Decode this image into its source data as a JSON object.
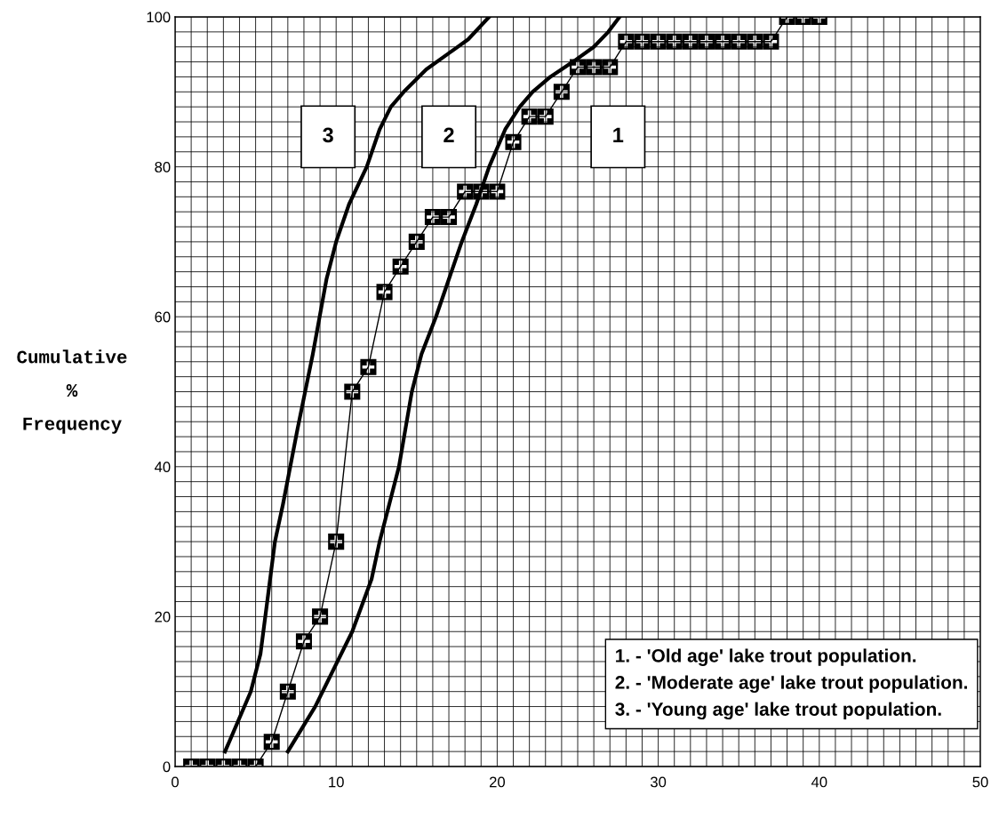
{
  "chart_data": {
    "type": "line",
    "ylabel": "Cumulative\n%\nFrequency",
    "xlim": [
      0,
      50
    ],
    "ylim": [
      0,
      100
    ],
    "xticks": [
      0,
      {
        "value": 1,
        "label": null
      },
      {
        "value": 2,
        "label": null
      },
      {
        "value": 3,
        "label": null
      },
      {
        "value": 4,
        "label": null
      },
      {
        "value": 5,
        "label": null
      },
      {
        "value": 6,
        "label": null
      },
      {
        "value": 7,
        "label": null
      },
      {
        "value": 8,
        "label": null
      },
      {
        "value": 9,
        "label": null
      },
      10,
      {
        "value": 11,
        "label": null
      },
      {
        "value": 12,
        "label": null
      },
      {
        "value": 13,
        "label": null
      },
      {
        "value": 14,
        "label": null
      },
      {
        "value": 15,
        "label": null
      },
      {
        "value": 16,
        "label": null
      },
      {
        "value": 17,
        "label": null
      },
      {
        "value": 18,
        "label": null
      },
      {
        "value": 19,
        "label": null
      },
      20,
      {
        "value": 21,
        "label": null
      },
      {
        "value": 22,
        "label": null
      },
      {
        "value": 23,
        "label": null
      },
      {
        "value": 24,
        "label": null
      },
      {
        "value": 25,
        "label": null
      },
      {
        "value": 26,
        "label": null
      },
      {
        "value": 27,
        "label": null
      },
      {
        "value": 28,
        "label": null
      },
      {
        "value": 29,
        "label": null
      },
      30,
      {
        "value": 31,
        "label": null
      },
      {
        "value": 32,
        "label": null
      },
      {
        "value": 33,
        "label": null
      },
      {
        "value": 34,
        "label": null
      },
      {
        "value": 35,
        "label": null
      },
      {
        "value": 36,
        "label": null
      },
      {
        "value": 37,
        "label": null
      },
      {
        "value": 38,
        "label": null
      },
      {
        "value": 39,
        "label": null
      },
      40,
      {
        "value": 41,
        "label": null
      },
      {
        "value": 42,
        "label": null
      },
      {
        "value": 43,
        "label": null
      },
      {
        "value": 44,
        "label": null
      },
      {
        "value": 45,
        "label": null
      },
      {
        "value": 46,
        "label": null
      },
      {
        "value": 47,
        "label": null
      },
      {
        "value": 48,
        "label": null
      },
      {
        "value": 49,
        "label": null
      },
      50
    ],
    "yticks": [
      0,
      {
        "value": 2,
        "label": null
      },
      {
        "value": 4,
        "label": null
      },
      {
        "value": 6,
        "label": null
      },
      {
        "value": 8,
        "label": null
      },
      {
        "value": 10,
        "label": null
      },
      {
        "value": 12,
        "label": null
      },
      {
        "value": 14,
        "label": null
      },
      {
        "value": 16,
        "label": null
      },
      {
        "value": 18,
        "label": null
      },
      20,
      {
        "value": 22,
        "label": null
      },
      {
        "value": 24,
        "label": null
      },
      {
        "value": 26,
        "label": null
      },
      {
        "value": 28,
        "label": null
      },
      {
        "value": 30,
        "label": null
      },
      {
        "value": 32,
        "label": null
      },
      {
        "value": 34,
        "label": null
      },
      {
        "value": 36,
        "label": null
      },
      {
        "value": 38,
        "label": null
      },
      40,
      {
        "value": 42,
        "label": null
      },
      {
        "value": 44,
        "label": null
      },
      {
        "value": 46,
        "label": null
      },
      {
        "value": 48,
        "label": null
      },
      {
        "value": 50,
        "label": null
      },
      {
        "value": 52,
        "label": null
      },
      {
        "value": 54,
        "label": null
      },
      {
        "value": 56,
        "label": null
      },
      {
        "value": 58,
        "label": null
      },
      60,
      {
        "value": 62,
        "label": null
      },
      {
        "value": 64,
        "label": null
      },
      {
        "value": 66,
        "label": null
      },
      {
        "value": 68,
        "label": null
      },
      {
        "value": 70,
        "label": null
      },
      {
        "value": 72,
        "label": null
      },
      {
        "value": 74,
        "label": null
      },
      {
        "value": 76,
        "label": null
      },
      {
        "value": 78,
        "label": null
      },
      80,
      {
        "value": 82,
        "label": null
      },
      {
        "value": 84,
        "label": null
      },
      {
        "value": 86,
        "label": null
      },
      {
        "value": 88,
        "label": null
      },
      {
        "value": 90,
        "label": null
      },
      {
        "value": 92,
        "label": null
      },
      {
        "value": 94,
        "label": null
      },
      {
        "value": 96,
        "label": null
      },
      {
        "value": 98,
        "label": null
      },
      100
    ],
    "grid": true,
    "series": [
      {
        "name": "1",
        "color": "#000000",
        "marker": "square",
        "x": [
          1,
          2,
          3,
          4,
          5,
          6,
          7,
          8,
          9,
          10,
          11,
          12,
          13,
          14,
          15,
          16,
          17,
          18,
          19,
          20,
          21,
          22,
          23,
          24,
          25,
          26,
          27,
          28,
          29,
          30,
          31,
          32,
          33,
          34,
          35,
          36,
          37,
          38,
          39,
          40
        ],
        "values": [
          0,
          0,
          0,
          0,
          0,
          3.3,
          10,
          16.7,
          20,
          30,
          50,
          53.3,
          63.3,
          66.7,
          70,
          73.3,
          73.3,
          76.7,
          76.7,
          76.7,
          83.3,
          86.7,
          86.7,
          90,
          93.3,
          93.3,
          93.3,
          96.7,
          96.7,
          96.7,
          96.7,
          96.7,
          96.7,
          96.7,
          96.7,
          96.7,
          96.7,
          100,
          100,
          100
        ]
      },
      {
        "name": "2",
        "color": "#000000",
        "marker": "none",
        "x": [
          7,
          8.7,
          11,
          12.2,
          12.7,
          13.3,
          13.9,
          14.7,
          15.3,
          16.2,
          17,
          17.8,
          18.7,
          19.5,
          20.5,
          21.4,
          22.2,
          23.3,
          24.7,
          26,
          26.9,
          27.6
        ],
        "values": [
          2,
          8,
          18,
          25,
          30,
          35,
          40,
          50,
          55,
          60,
          65,
          70,
          75,
          80,
          85,
          88,
          90,
          92,
          94,
          96,
          98,
          100
        ]
      },
      {
        "name": "3",
        "color": "#000000",
        "marker": "none",
        "x": [
          3.1,
          4.7,
          5.3,
          5.6,
          6.2,
          6.7,
          7.6,
          8.55,
          9.4,
          10,
          10.8,
          11.9,
          12.7,
          13.4,
          14.2,
          15.6,
          16.9,
          18.2,
          19.5
        ],
        "values": [
          2,
          10,
          15,
          20,
          30,
          35,
          45,
          55,
          65,
          70,
          75,
          80,
          85,
          88,
          90,
          93,
          95,
          97,
          100
        ]
      }
    ],
    "annotations": [
      "1. - 'Old age' lake trout population.\n2. - 'Moderate age' lake trout population.\n3. - 'Young age' lake trout population."
    ]
  }
}
